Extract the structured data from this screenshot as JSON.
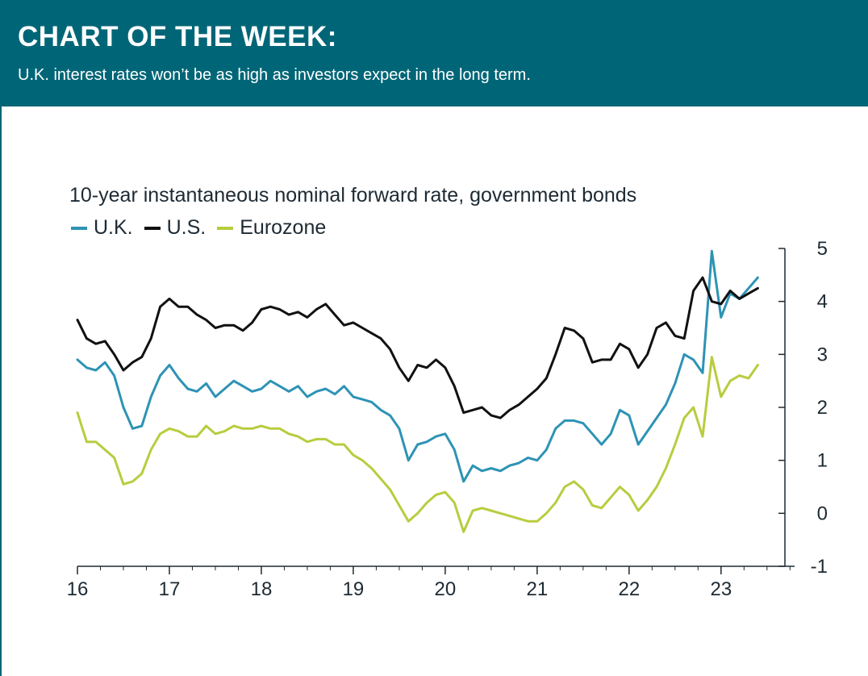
{
  "header": {
    "title": "CHART OF THE WEEK:",
    "subtitle": "U.K. interest rates won’t be as high as investors expect in the long term."
  },
  "colors": {
    "header_bg": "#006677",
    "uk": "#2e93b5",
    "us": "#111111",
    "eurozone": "#b9cc3f"
  },
  "chart_data": {
    "type": "line",
    "title": "10-year instantaneous nominal forward rate, government bonds",
    "xlabel": "",
    "ylabel": "",
    "x_ticks": [
      "16",
      "17",
      "18",
      "19",
      "20",
      "21",
      "22",
      "23"
    ],
    "y_ticks": [
      "5",
      "4",
      "3",
      "2",
      "1",
      "0",
      "-1"
    ],
    "xlim": [
      2016.0,
      2023.8
    ],
    "ylim": [
      -1,
      5
    ],
    "y_axis_side": "right",
    "legend_position": "top-left",
    "grid": false,
    "x": [
      2016.0,
      2016.1,
      2016.2,
      2016.3,
      2016.4,
      2016.5,
      2016.6,
      2016.7,
      2016.8,
      2016.9,
      2017.0,
      2017.1,
      2017.2,
      2017.3,
      2017.4,
      2017.5,
      2017.6,
      2017.7,
      2017.8,
      2017.9,
      2018.0,
      2018.1,
      2018.2,
      2018.3,
      2018.4,
      2018.5,
      2018.6,
      2018.7,
      2018.8,
      2018.9,
      2019.0,
      2019.1,
      2019.2,
      2019.3,
      2019.4,
      2019.5,
      2019.6,
      2019.7,
      2019.8,
      2019.9,
      2020.0,
      2020.1,
      2020.2,
      2020.3,
      2020.4,
      2020.5,
      2020.6,
      2020.7,
      2020.8,
      2020.9,
      2021.0,
      2021.1,
      2021.2,
      2021.3,
      2021.4,
      2021.5,
      2021.6,
      2021.7,
      2021.8,
      2021.9,
      2022.0,
      2022.1,
      2022.2,
      2022.3,
      2022.4,
      2022.5,
      2022.6,
      2022.7,
      2022.8,
      2022.9,
      2023.0,
      2023.1,
      2023.2,
      2023.3,
      2023.4
    ],
    "series": [
      {
        "name": "U.K.",
        "color": "#2e93b5",
        "values": [
          2.9,
          2.75,
          2.7,
          2.85,
          2.6,
          2.0,
          1.6,
          1.65,
          2.2,
          2.6,
          2.8,
          2.55,
          2.35,
          2.3,
          2.45,
          2.2,
          2.35,
          2.5,
          2.4,
          2.3,
          2.35,
          2.5,
          2.4,
          2.3,
          2.4,
          2.2,
          2.3,
          2.35,
          2.25,
          2.4,
          2.2,
          2.15,
          2.1,
          1.95,
          1.85,
          1.6,
          1.0,
          1.3,
          1.35,
          1.45,
          1.5,
          1.2,
          0.6,
          0.9,
          0.8,
          0.85,
          0.8,
          0.9,
          0.95,
          1.05,
          1.0,
          1.2,
          1.6,
          1.75,
          1.75,
          1.7,
          1.5,
          1.3,
          1.5,
          1.95,
          1.85,
          1.3,
          1.55,
          1.8,
          2.05,
          2.45,
          3.0,
          2.9,
          2.65,
          4.95,
          3.7,
          4.15,
          4.05,
          4.25,
          4.45
        ]
      },
      {
        "name": "U.S.",
        "color": "#111111",
        "values": [
          3.65,
          3.3,
          3.2,
          3.25,
          3.0,
          2.7,
          2.85,
          2.95,
          3.3,
          3.9,
          4.05,
          3.9,
          3.9,
          3.75,
          3.65,
          3.5,
          3.55,
          3.55,
          3.45,
          3.6,
          3.85,
          3.9,
          3.85,
          3.75,
          3.8,
          3.7,
          3.85,
          3.95,
          3.75,
          3.55,
          3.6,
          3.5,
          3.4,
          3.3,
          3.1,
          2.75,
          2.5,
          2.8,
          2.75,
          2.9,
          2.75,
          2.4,
          1.9,
          1.95,
          2.0,
          1.85,
          1.8,
          1.95,
          2.05,
          2.2,
          2.35,
          2.55,
          3.0,
          3.5,
          3.45,
          3.3,
          2.85,
          2.9,
          2.9,
          3.2,
          3.1,
          2.75,
          3.0,
          3.5,
          3.6,
          3.35,
          3.3,
          4.2,
          4.45,
          4.0,
          3.95,
          4.2,
          4.05,
          4.15,
          4.25
        ]
      },
      {
        "name": "Eurozone",
        "color": "#b9cc3f",
        "values": [
          1.9,
          1.35,
          1.35,
          1.2,
          1.05,
          0.55,
          0.6,
          0.75,
          1.2,
          1.5,
          1.6,
          1.55,
          1.45,
          1.45,
          1.65,
          1.5,
          1.55,
          1.65,
          1.6,
          1.6,
          1.65,
          1.6,
          1.6,
          1.5,
          1.45,
          1.35,
          1.4,
          1.4,
          1.3,
          1.3,
          1.1,
          1.0,
          0.85,
          0.65,
          0.45,
          0.15,
          -0.15,
          0.0,
          0.2,
          0.35,
          0.4,
          0.2,
          -0.35,
          0.05,
          0.1,
          0.05,
          0.0,
          -0.05,
          -0.1,
          -0.15,
          -0.15,
          0.0,
          0.2,
          0.5,
          0.6,
          0.45,
          0.15,
          0.1,
          0.3,
          0.5,
          0.35,
          0.05,
          0.25,
          0.5,
          0.85,
          1.3,
          1.8,
          2.0,
          1.45,
          2.95,
          2.2,
          2.5,
          2.6,
          2.55,
          2.8
        ]
      }
    ]
  }
}
